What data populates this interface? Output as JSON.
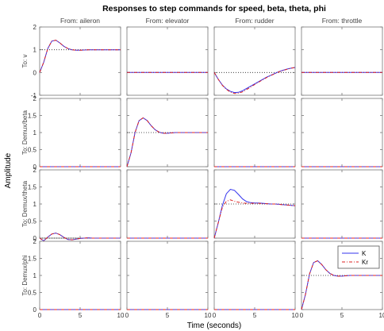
{
  "chart_data": {
    "type": "line",
    "title": "Responses to step commands for speed, beta, theta, phi",
    "xlabel": "Time (seconds)",
    "ylabel": "Amplitude",
    "grid": false,
    "legend_position": "top-right of the bottom-right subplot",
    "column_titles": [
      "From: aileron",
      "From: elevator",
      "From: rudder",
      "From: throttle"
    ],
    "row_labels": [
      "To: v",
      "To: Demux/beta",
      "To: Demux/theta",
      "To: Demux/phi"
    ],
    "xlim": [
      0,
      10
    ],
    "xticks": [
      "0",
      "5",
      "10"
    ],
    "row_ylims": [
      [
        -1,
        2
      ],
      [
        0,
        2
      ],
      [
        0,
        2
      ],
      [
        0,
        2
      ]
    ],
    "row_yticks": [
      [
        "-1",
        "0",
        "1",
        "2"
      ],
      [
        "0",
        "0.5",
        "1",
        "1.5",
        "2"
      ],
      [
        "0",
        "0.5",
        "1",
        "1.5",
        "2"
      ],
      [
        "0",
        "0.5",
        "1",
        "1.5",
        "2"
      ]
    ],
    "legend": [
      "K",
      "Kr"
    ],
    "series_colors": {
      "K": "#3333ee",
      "Kr": "#dd2222"
    },
    "x": [
      0,
      0.5,
      1,
      1.5,
      2,
      2.5,
      3,
      3.5,
      4,
      4.5,
      5,
      5.5,
      6,
      6.5,
      7,
      7.5,
      8,
      8.5,
      9,
      9.5,
      10
    ],
    "subplots": [
      {
        "row": 0,
        "col": 0,
        "reference": 1,
        "K": [
          0,
          0.45,
          1.05,
          1.38,
          1.42,
          1.3,
          1.15,
          1.05,
          1.0,
          0.98,
          0.98,
          0.99,
          1.0,
          1.0,
          1.0,
          1.0,
          1.0,
          1.0,
          1.0,
          1.0,
          1.0
        ],
        "Kr": [
          0,
          0.45,
          1.05,
          1.38,
          1.42,
          1.3,
          1.15,
          1.05,
          1.0,
          0.98,
          0.98,
          0.99,
          1.0,
          1.0,
          1.0,
          1.0,
          1.0,
          1.0,
          1.0,
          1.0,
          1.0
        ]
      },
      {
        "row": 0,
        "col": 1,
        "reference": 0,
        "K": [
          0,
          0,
          0,
          0,
          0,
          0,
          0,
          0,
          0,
          0,
          0,
          0,
          0,
          0,
          0,
          0,
          0,
          0,
          0,
          0,
          0
        ],
        "Kr": [
          0,
          0,
          0,
          0,
          0,
          0,
          0,
          0,
          0,
          0,
          0,
          0,
          0,
          0,
          0,
          0,
          0,
          0,
          0,
          0,
          0
        ]
      },
      {
        "row": 0,
        "col": 2,
        "reference": 0,
        "K": [
          0,
          -0.3,
          -0.55,
          -0.72,
          -0.83,
          -0.88,
          -0.87,
          -0.8,
          -0.7,
          -0.6,
          -0.5,
          -0.4,
          -0.3,
          -0.2,
          -0.12,
          -0.04,
          0.04,
          0.1,
          0.15,
          0.19,
          0.22
        ],
        "Kr": [
          0,
          -0.3,
          -0.56,
          -0.74,
          -0.86,
          -0.92,
          -0.91,
          -0.85,
          -0.75,
          -0.64,
          -0.53,
          -0.42,
          -0.32,
          -0.22,
          -0.13,
          -0.05,
          0.03,
          0.09,
          0.14,
          0.19,
          0.22
        ]
      },
      {
        "row": 0,
        "col": 3,
        "reference": 0,
        "K": [
          0,
          0,
          0,
          0,
          0,
          0,
          0,
          0,
          0,
          0,
          0,
          0,
          0,
          0,
          0,
          0,
          0,
          0,
          0,
          0,
          0
        ],
        "Kr": [
          0,
          0,
          0,
          0,
          0,
          0,
          0,
          0,
          0,
          0,
          0,
          0,
          0,
          0,
          0,
          0,
          0,
          0,
          0,
          0,
          0
        ]
      },
      {
        "row": 1,
        "col": 0,
        "reference": 0,
        "K": [
          0,
          0,
          0,
          0,
          0,
          0,
          0,
          0,
          0,
          0,
          0,
          0,
          0,
          0,
          0,
          0,
          0,
          0,
          0,
          0,
          0
        ],
        "Kr": [
          0,
          0,
          0,
          0,
          0,
          0,
          0,
          0,
          0,
          0,
          0,
          0,
          0,
          0,
          0,
          0,
          0,
          0,
          0,
          0,
          0
        ]
      },
      {
        "row": 1,
        "col": 1,
        "reference": 1,
        "K": [
          0,
          0.4,
          1.0,
          1.35,
          1.43,
          1.35,
          1.2,
          1.08,
          1.01,
          0.98,
          0.98,
          0.99,
          1.0,
          1.0,
          1.0,
          1.0,
          1.0,
          1.0,
          1.0,
          1.0,
          1.0
        ],
        "Kr": [
          0,
          0.4,
          1.0,
          1.35,
          1.43,
          1.35,
          1.2,
          1.08,
          1.01,
          0.98,
          0.98,
          0.99,
          1.0,
          1.0,
          1.0,
          1.0,
          1.0,
          1.0,
          1.0,
          1.0,
          1.0
        ]
      },
      {
        "row": 1,
        "col": 2,
        "reference": 0,
        "K": [
          0,
          0,
          0,
          0,
          0,
          0,
          0,
          0,
          0,
          0,
          0,
          0,
          0,
          0,
          0,
          0,
          0,
          0,
          0,
          0,
          0
        ],
        "Kr": [
          0,
          0,
          0,
          0,
          0,
          0,
          0,
          0,
          0,
          0,
          0,
          0,
          0,
          0,
          0,
          0,
          0,
          0,
          0,
          0,
          0
        ]
      },
      {
        "row": 1,
        "col": 3,
        "reference": 0,
        "K": [
          0,
          0,
          0,
          0,
          0,
          0,
          0,
          0,
          0,
          0,
          0,
          0,
          0,
          0,
          0,
          0,
          0,
          0,
          0,
          0,
          0
        ],
        "Kr": [
          0,
          0,
          0,
          0,
          0,
          0,
          0,
          0,
          0,
          0,
          0,
          0,
          0,
          0,
          0,
          0,
          0,
          0,
          0,
          0,
          0
        ]
      },
      {
        "row": 2,
        "col": 0,
        "reference": 0,
        "K": [
          0,
          -0.08,
          0.03,
          0.12,
          0.15,
          0.1,
          0.02,
          -0.04,
          -0.05,
          -0.03,
          -0.01,
          0,
          0.01,
          0,
          0,
          0,
          0,
          0,
          0,
          0,
          0
        ],
        "Kr": [
          0,
          -0.08,
          0.03,
          0.12,
          0.15,
          0.1,
          0.02,
          -0.04,
          -0.05,
          -0.03,
          -0.01,
          0,
          0.01,
          0,
          0,
          0,
          0,
          0,
          0,
          0,
          0
        ]
      },
      {
        "row": 2,
        "col": 1,
        "reference": 0,
        "K": [
          0,
          0,
          0,
          0,
          0,
          0,
          0,
          0,
          0,
          0,
          0,
          0,
          0,
          0,
          0,
          0,
          0,
          0,
          0,
          0,
          0
        ],
        "Kr": [
          0,
          0,
          0,
          0,
          0,
          0,
          0,
          0,
          0,
          0,
          0,
          0,
          0,
          0,
          0,
          0,
          0,
          0,
          0,
          0,
          0
        ]
      },
      {
        "row": 2,
        "col": 2,
        "reference": 1,
        "K": [
          0,
          0.45,
          0.95,
          1.3,
          1.43,
          1.4,
          1.28,
          1.15,
          1.07,
          1.04,
          1.03,
          1.03,
          1.02,
          1.01,
          1.0,
          1.0,
          0.99,
          0.98,
          0.97,
          0.96,
          0.95
        ],
        "Kr": [
          0,
          0.45,
          0.9,
          1.08,
          1.12,
          1.08,
          1.05,
          1.03,
          1.02,
          1.02,
          1.02,
          1.02,
          1.01,
          1.01,
          1.0,
          1.0,
          0.99,
          0.98,
          0.97,
          0.96,
          0.95
        ]
      },
      {
        "row": 2,
        "col": 3,
        "reference": 0,
        "K": [
          0,
          0,
          0,
          0,
          0,
          0,
          0,
          0,
          0,
          0,
          0,
          0,
          0,
          0,
          0,
          0,
          0,
          0,
          0,
          0,
          0
        ],
        "Kr": [
          0,
          0,
          0,
          0,
          0,
          0,
          0,
          0,
          0,
          0,
          0,
          0,
          0,
          0,
          0,
          0,
          0,
          0,
          0,
          0,
          0
        ]
      },
      {
        "row": 3,
        "col": 0,
        "reference": 0,
        "K": [
          0,
          0,
          0,
          0,
          0,
          0,
          0,
          0,
          0,
          0,
          0,
          0,
          0,
          0,
          0,
          0,
          0,
          0,
          0,
          0,
          0
        ],
        "Kr": [
          0,
          0,
          0,
          0,
          0,
          0,
          0,
          0,
          0,
          0,
          0,
          0,
          0,
          0,
          0,
          0,
          0,
          0,
          0,
          0,
          0
        ]
      },
      {
        "row": 3,
        "col": 1,
        "reference": 0,
        "K": [
          0,
          0,
          0,
          0,
          0,
          0,
          0,
          0,
          0,
          0,
          0,
          0,
          0,
          0,
          0,
          0,
          0,
          0,
          0,
          0,
          0
        ],
        "Kr": [
          0,
          0,
          0,
          0,
          0,
          0,
          0,
          0,
          0,
          0,
          0,
          0,
          0,
          0,
          0,
          0,
          0,
          0,
          0,
          0,
          0
        ]
      },
      {
        "row": 3,
        "col": 2,
        "reference": 0,
        "K": [
          0,
          0,
          0,
          0,
          0,
          0,
          0,
          0,
          0,
          0,
          0,
          0,
          0,
          0,
          0,
          0,
          0,
          0,
          0,
          0,
          0
        ],
        "Kr": [
          0,
          0,
          0,
          0,
          0,
          0,
          0,
          0,
          0,
          0,
          0,
          0,
          0,
          0,
          0,
          0,
          0,
          0,
          0,
          0,
          0
        ]
      },
      {
        "row": 3,
        "col": 3,
        "reference": 1,
        "K": [
          0,
          0.45,
          1.05,
          1.38,
          1.43,
          1.32,
          1.17,
          1.06,
          1.0,
          0.98,
          0.98,
          0.99,
          1.0,
          1.0,
          1.0,
          1.0,
          1.0,
          1.0,
          1.0,
          1.0,
          1.0
        ],
        "Kr": [
          0,
          0.45,
          1.05,
          1.38,
          1.43,
          1.32,
          1.17,
          1.06,
          1.0,
          0.98,
          0.98,
          0.99,
          1.0,
          1.0,
          1.0,
          1.0,
          1.0,
          1.0,
          1.0,
          1.0,
          1.0
        ]
      }
    ]
  }
}
